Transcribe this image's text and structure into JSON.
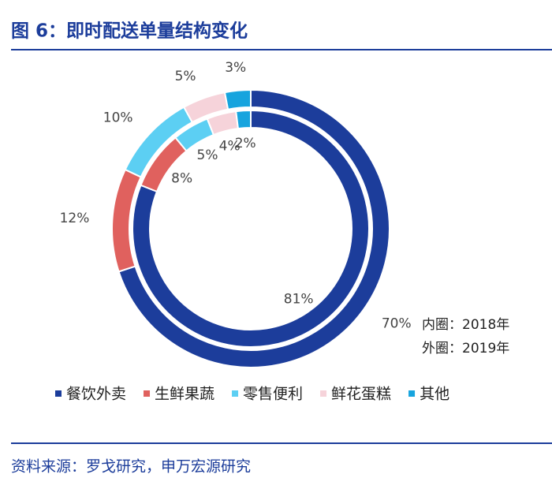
{
  "chart_data": {
    "type": "donut",
    "title": "图 6：即时配送单量结构变化",
    "source": "资料来源：罗戈研究，申万宏源研究",
    "categories": [
      "餐饮外卖",
      "生鲜果蔬",
      "零售便利",
      "鲜花蛋糕",
      "其他"
    ],
    "colors": [
      "#1c3d9b",
      "#e0615e",
      "#5ccff3",
      "#f6d3da",
      "#17a4de"
    ],
    "series": [
      {
        "name": "内圈：2018年",
        "values": [
          81,
          8,
          5,
          4,
          2
        ],
        "value_labels": [
          "81%",
          "8%",
          "5%",
          "4%",
          "2%"
        ]
      },
      {
        "name": "外圈：2019年",
        "values": [
          70,
          12,
          10,
          5,
          3
        ],
        "value_labels": [
          "70%",
          "12%",
          "10%",
          "5%",
          "3%"
        ]
      }
    ]
  }
}
